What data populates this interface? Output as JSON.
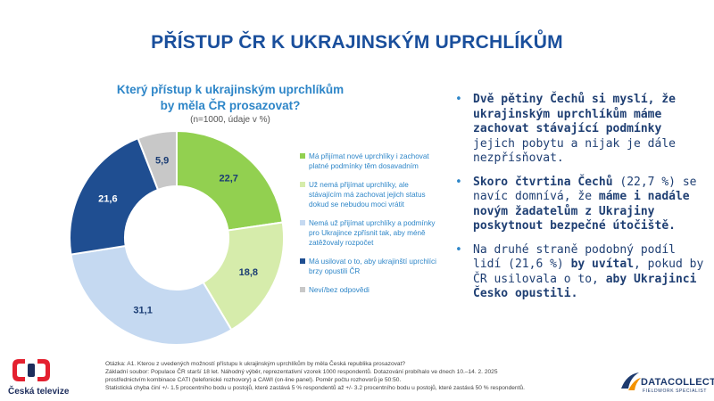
{
  "page_title": "PŘÍSTUP ČR K UKRAJINSKÝM UPRCHLÍKŮM",
  "chart_data": {
    "type": "pie",
    "variant": "donut",
    "title": "Který přístup k ukrajinským uprchlíkům by měla ČR prosazovat?",
    "title_line1": "Který přístup k ukrajinským uprchlíkům",
    "title_line2": "by měla ČR prosazovat?",
    "subtitle": "(n=1000, údaje v %)",
    "start_angle_deg": 0,
    "slices": [
      {
        "label": "Má přijímat nové uprchlíky i zachovat platné podmínky těm dosavadním",
        "value": 22.7,
        "value_label": "22,7",
        "color": "#92d050",
        "label_color": "#1a3c73"
      },
      {
        "label": "Už nemá přijímat uprchlíky, ale stávajícím má zachovat jejich status dokud se nebudou moci vrátit",
        "value": 18.8,
        "value_label": "18,8",
        "color": "#d6ecab",
        "label_color": "#1a3c73"
      },
      {
        "label": "Nemá už přijímat uprchlíky a podmínky pro Ukrajince zpřísnit tak, aby méně zatěžovaly rozpočet",
        "value": 31.1,
        "value_label": "31,1",
        "color": "#c5d9f1",
        "label_color": "#1a3c73"
      },
      {
        "label": "Má usilovat o to, aby ukrajinští uprchlíci brzy opustili ČR",
        "value": 21.6,
        "value_label": "21,6",
        "color": "#1f4e91",
        "label_color": "#ffffff"
      },
      {
        "label": "Neví/bez odpovědi",
        "value": 5.9,
        "value_label": "5,9",
        "color": "#c8c8c8",
        "label_color": "#1a3c73"
      }
    ]
  },
  "bullets": [
    {
      "parts": [
        {
          "t": "Dvě pětiny Čechů si myslí, že ukrajinským uprchlíkům ",
          "b": true
        },
        {
          "t": "máme zachovat stávající podmínky",
          "b": true
        },
        {
          "t": " jejich pobytu a nijak je dále nezpřísňovat.",
          "b": false
        }
      ]
    },
    {
      "parts": [
        {
          "t": "Skoro čtvrtina Čechů",
          "b": true
        },
        {
          "t": " (22,7 %) se navíc domnívá, že ",
          "b": false
        },
        {
          "t": "máme i nadále novým žadatelům z Ukrajiny poskytnout bezpečné útočiště.",
          "b": true
        }
      ]
    },
    {
      "parts": [
        {
          "t": "Na druhé straně podobný podíl lidí (21,6 %) ",
          "b": false
        },
        {
          "t": "by uvítal",
          "b": true
        },
        {
          "t": ", pokud by ČR usilovala o to, ",
          "b": false
        },
        {
          "t": "aby Ukrajinci Česko opustili.",
          "b": true
        }
      ]
    }
  ],
  "footnote": [
    "Otázka: A1. Kterou z uvedených možností přístupu k ukrajinským uprchlíkům by měla Česká republika prosazovat?",
    "Základní soubor: Populace ČR starší 18 let. Náhodný výběr, reprezentativní vzorek 1000 respondentů. Dotazování probíhalo ve dnech 10.–14. 2. 2025",
    "prostřednictvím kombinace CATI (telefonické rozhovory) a CAWI (on-line panel). Poměr počtu rozhovorů je 50:50.",
    "Statistická chyba činí +/- 1.5 procentního bodu u postojů, které zastává 5 % respondentů až +/- 3.2 procentního bodu u postojů, které zastává 50 % respondentů."
  ],
  "logos": {
    "ct_name": "Česká televize",
    "dc_name": "DATACOLLECT",
    "dc_tagline": "FIELDWORK SPECIALIST",
    "ct_red": "#e4202f",
    "ct_blue": "#1d2d5c",
    "dc_blue": "#1d3a6e",
    "dc_orange": "#f39200"
  },
  "colors": {
    "title": "#1a4f9c",
    "accent": "#2e86c8",
    "bullet_text": "#1f3f73"
  }
}
